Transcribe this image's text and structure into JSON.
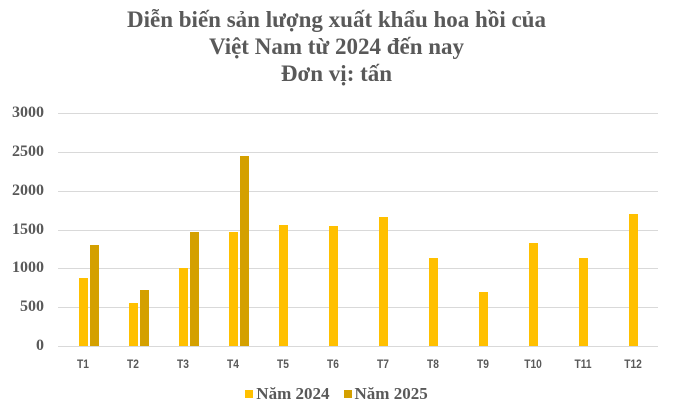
{
  "title": {
    "line1": "Diễn biến sản lượng xuất khẩu hoa hồi của",
    "line2": "Việt Nam từ 2024 đến nay",
    "line3": "Đơn vị: tấn"
  },
  "y_ticks": [
    "3000",
    "2500",
    "2000",
    "1500",
    "1000",
    "500",
    "0"
  ],
  "legend": [
    {
      "label": "Năm 2024",
      "color": "#FFC000"
    },
    {
      "label": "Năm 2025",
      "color": "#D4A000"
    }
  ],
  "chart_data": {
    "type": "bar",
    "title": "Diễn biến sản lượng xuất khẩu hoa hồi của Việt Nam từ 2024 đến nay",
    "subtitle": "Đơn vị: tấn",
    "xlabel": "",
    "ylabel": "",
    "categories": [
      "T1",
      "T2",
      "T3",
      "T4",
      "T5",
      "T6",
      "T7",
      "T8",
      "T9",
      "T10",
      "T11",
      "T12"
    ],
    "series": [
      {
        "name": "Năm 2024",
        "color": "#FFC000",
        "values": [
          875,
          560,
          1000,
          1470,
          1560,
          1550,
          1660,
          1130,
          700,
          1330,
          1130,
          1700
        ]
      },
      {
        "name": "Năm 2025",
        "color": "#D4A000",
        "values": [
          1300,
          720,
          1470,
          2440,
          null,
          null,
          null,
          null,
          null,
          null,
          null,
          null
        ]
      }
    ],
    "ylim": [
      0,
      3000
    ],
    "yticks": [
      0,
      500,
      1000,
      1500,
      2000,
      2500,
      3000
    ],
    "grid": true,
    "legend_position": "bottom"
  }
}
